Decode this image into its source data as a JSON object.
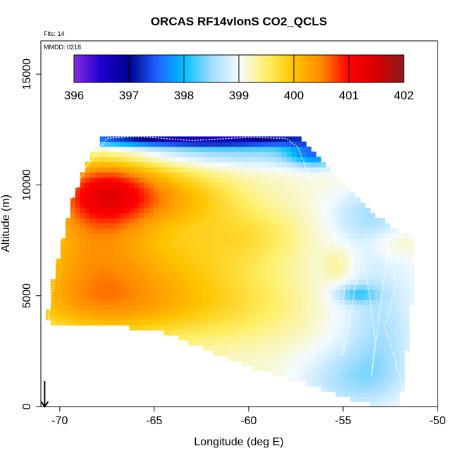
{
  "chart_data": {
    "type": "heatmap",
    "title": "ORCAS RF14vlonS CO2_QCLS",
    "annotations": [
      "Flts: 14",
      "MMDD: 0218"
    ],
    "xlabel": "Longitude (deg E)",
    "ylabel": "Altitude (m)",
    "xlim": [
      -71,
      -50
    ],
    "ylim": [
      0,
      16500
    ],
    "x_ticks": [
      -70,
      -65,
      -60,
      -55,
      -50
    ],
    "y_ticks": [
      0,
      5000,
      10000,
      15000
    ],
    "x_tick_labels": [
      "-70",
      "-65",
      "-60",
      "-55",
      "-50"
    ],
    "y_tick_labels": [
      "0",
      "5000",
      "10000",
      "15000"
    ],
    "colorbar": {
      "min": 396,
      "max": 402,
      "ticks": [
        396,
        397,
        398,
        399,
        400,
        401,
        402
      ],
      "tick_labels": [
        "396",
        "397",
        "398",
        "399",
        "400",
        "401",
        "402"
      ],
      "stops": [
        {
          "value": 396,
          "color": "#8a2be2"
        },
        {
          "value": 396.5,
          "color": "#1a00d0"
        },
        {
          "value": 397,
          "color": "#00008b"
        },
        {
          "value": 397.5,
          "color": "#1e60ff"
        },
        {
          "value": 398,
          "color": "#00bfff"
        },
        {
          "value": 398.5,
          "color": "#9fdcff"
        },
        {
          "value": 399,
          "color": "#f5fbff"
        },
        {
          "value": 399.5,
          "color": "#fff06a"
        },
        {
          "value": 400,
          "color": "#ffc400"
        },
        {
          "value": 400.5,
          "color": "#ff8a00"
        },
        {
          "value": 401,
          "color": "#ff0000"
        },
        {
          "value": 401.5,
          "color": "#d80000"
        },
        {
          "value": 402,
          "color": "#8b1a1a"
        }
      ]
    },
    "outline": {
      "lon": [
        -70.7,
        -70.3,
        -69.3,
        -68.7,
        -67.7,
        -57.5,
        -56.8,
        -53.5,
        -51.3,
        -51.3,
        -52,
        -53,
        -54.8,
        -55,
        -60,
        -65,
        -70.7
      ],
      "alt": [
        3800,
        6000,
        9500,
        10700,
        12300,
        12300,
        11700,
        8700,
        7600,
        5000,
        0,
        0,
        400,
        500,
        1800,
        3500,
        3800
      ]
    },
    "ambient": 399.15,
    "features": [
      {
        "lon": -68,
        "alt": 9700,
        "value": 400.45,
        "sigma_lon": 1.8,
        "sigma_alt": 1100
      },
      {
        "lon": -65.8,
        "alt": 9600,
        "value": 400.1,
        "sigma_lon": 2.5,
        "sigma_alt": 1100
      },
      {
        "lon": -62.5,
        "alt": 9300,
        "value": 399.5,
        "sigma_lon": 2.2,
        "sigma_alt": 800
      },
      {
        "lon": -68.5,
        "alt": 7000,
        "value": 400.05,
        "sigma_lon": 2.5,
        "sigma_alt": 1500
      },
      {
        "lon": -63.5,
        "alt": 6500,
        "value": 399.7,
        "sigma_lon": 3.5,
        "sigma_alt": 1300
      },
      {
        "lon": -68,
        "alt": 4600,
        "value": 400.05,
        "sigma_lon": 3.2,
        "sigma_alt": 1100
      },
      {
        "lon": -62,
        "alt": 4400,
        "value": 399.6,
        "sigma_lon": 3.5,
        "sigma_alt": 1100
      },
      {
        "lon": -60,
        "alt": 7800,
        "value": 399.5,
        "sigma_lon": 2,
        "sigma_alt": 800
      },
      {
        "lon": -53.5,
        "alt": 5500,
        "value": 398.8,
        "sigma_lon": 2,
        "sigma_alt": 2500
      },
      {
        "lon": -54.5,
        "alt": 1200,
        "value": 398.6,
        "sigma_lon": 2,
        "sigma_alt": 1000
      },
      {
        "lon": -53,
        "alt": 3000,
        "value": 398.8,
        "sigma_lon": 1.2,
        "sigma_alt": 1500
      },
      {
        "lon": -55.2,
        "alt": 6400,
        "value": 399.5,
        "sigma_lon": 0.6,
        "sigma_alt": 600
      },
      {
        "lon": -54.3,
        "alt": 5100,
        "value": 398.5,
        "sigma_lon": 0.8,
        "sigma_alt": 300
      },
      {
        "lon": -53.5,
        "alt": 8700,
        "value": 398.7,
        "sigma_lon": 1.5,
        "sigma_alt": 800
      },
      {
        "lon": -52.2,
        "alt": 7400,
        "value": 399.4,
        "sigma_lon": 1,
        "sigma_alt": 500
      },
      {
        "lon": -61,
        "alt": 11600,
        "value": 398.4,
        "sigma_lon": 5,
        "sigma_alt": 500
      },
      {
        "lon": -63,
        "alt": 12050,
        "value": 397.0,
        "sigma_lon": 6,
        "sigma_alt": 200
      },
      {
        "lon": -56.5,
        "alt": 11400,
        "value": 398.0,
        "sigma_lon": 1,
        "sigma_alt": 400
      }
    ],
    "flight_track": {
      "lon": [
        -70.6,
        -70.2,
        -69.5,
        -68.6,
        -67.5,
        -66,
        -63,
        -60,
        -58,
        -57.4,
        -56.4,
        -55.5,
        -54.9,
        -55.1,
        -55.0,
        -54.0,
        -53.6,
        -53.3,
        -53.5,
        -52.6,
        -52.2,
        -52.8,
        -52.3,
        -51.8
      ],
      "alt": [
        3900,
        6500,
        9200,
        10800,
        12100,
        12200,
        12000,
        12150,
        12100,
        11700,
        9600,
        7800,
        5600,
        3800,
        2300,
        7100,
        5000,
        3000,
        1400,
        7200,
        5500,
        3600,
        2300,
        700
      ]
    },
    "arrow": {
      "lon": -70.8,
      "alt_from": 700,
      "alt_to": 0
    }
  }
}
